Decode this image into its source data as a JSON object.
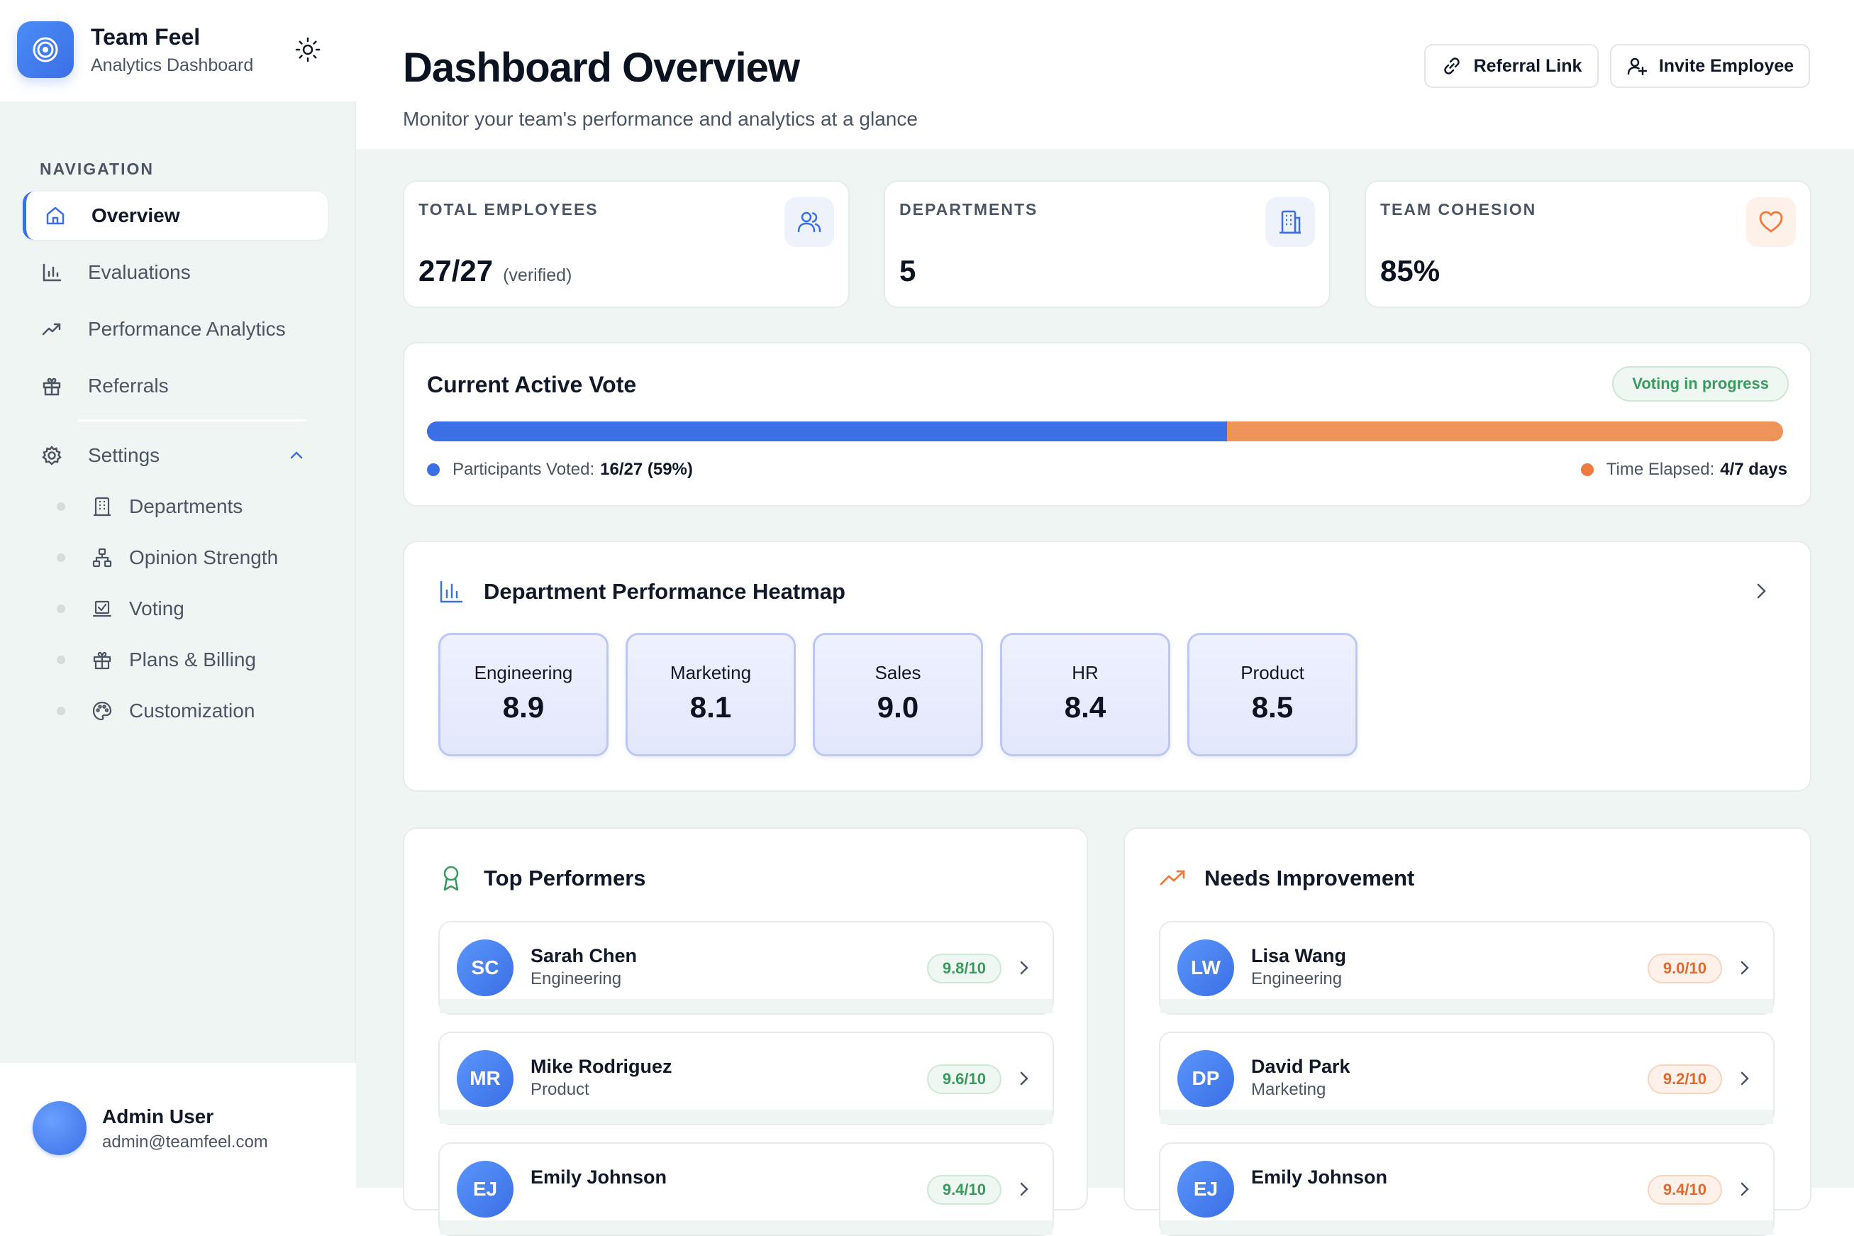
{
  "brand": {
    "title": "Team Feel",
    "subtitle": "Analytics Dashboard"
  },
  "nav": {
    "heading": "NAVIGATION",
    "items": [
      {
        "label": "Overview",
        "icon": "home-icon",
        "active": true
      },
      {
        "label": "Evaluations",
        "icon": "bar-chart-icon"
      },
      {
        "label": "Performance Analytics",
        "icon": "trending-up-icon"
      },
      {
        "label": "Referrals",
        "icon": "gift-icon"
      }
    ],
    "settings": {
      "label": "Settings",
      "items": [
        {
          "label": "Departments",
          "icon": "building-icon"
        },
        {
          "label": "Opinion Strength",
          "icon": "hierarchy-icon"
        },
        {
          "label": "Voting",
          "icon": "vote-icon"
        },
        {
          "label": "Plans & Billing",
          "icon": "gift-icon"
        },
        {
          "label": "Customization",
          "icon": "palette-icon"
        }
      ]
    }
  },
  "user": {
    "name": "Admin User",
    "email": "admin@teamfeel.com"
  },
  "header": {
    "title": "Dashboard Overview",
    "subtitle": "Monitor your team's performance and analytics at a glance",
    "referral_label": "Referral Link",
    "invite_label": "Invite Employee"
  },
  "stats": [
    {
      "label": "TOTAL EMPLOYEES",
      "value": "27/27",
      "note": "(verified)",
      "icon": "users-icon"
    },
    {
      "label": "DEPARTMENTS",
      "value": "5",
      "icon": "building-icon"
    },
    {
      "label": "TEAM COHESION",
      "value": "85%",
      "icon": "heart-icon"
    }
  ],
  "vote": {
    "title": "Current Active Vote",
    "status": "Voting in progress",
    "participants_label": "Participants Voted:",
    "participants_value": "16/27 (59%)",
    "participation_fraction": 0.59,
    "time_label": "Time Elapsed:",
    "time_value": "4/7 days",
    "colors": {
      "participants": "#3b6fe6",
      "time": "#ee9459"
    }
  },
  "heatmap": {
    "title": "Department Performance Heatmap",
    "departments": [
      {
        "name": "Engineering",
        "score": "8.9"
      },
      {
        "name": "Marketing",
        "score": "8.1"
      },
      {
        "name": "Sales",
        "score": "9.0"
      },
      {
        "name": "HR",
        "score": "8.4"
      },
      {
        "name": "Product",
        "score": "8.5"
      }
    ]
  },
  "top_performers": {
    "title": "Top Performers",
    "people": [
      {
        "initials": "SC",
        "name": "Sarah Chen",
        "dept": "Engineering",
        "score": "9.8/10"
      },
      {
        "initials": "MR",
        "name": "Mike Rodriguez",
        "dept": "Product",
        "score": "9.6/10"
      },
      {
        "initials": "EJ",
        "name": "Emily Johnson",
        "dept": "",
        "score": "9.4/10"
      }
    ]
  },
  "needs_improvement": {
    "title": "Needs Improvement",
    "people": [
      {
        "initials": "LW",
        "name": "Lisa Wang",
        "dept": "Engineering",
        "score": "9.0/10"
      },
      {
        "initials": "DP",
        "name": "David Park",
        "dept": "Marketing",
        "score": "9.2/10"
      },
      {
        "initials": "EJ",
        "name": "Emily Johnson",
        "dept": "",
        "score": "9.4/10"
      }
    ]
  }
}
